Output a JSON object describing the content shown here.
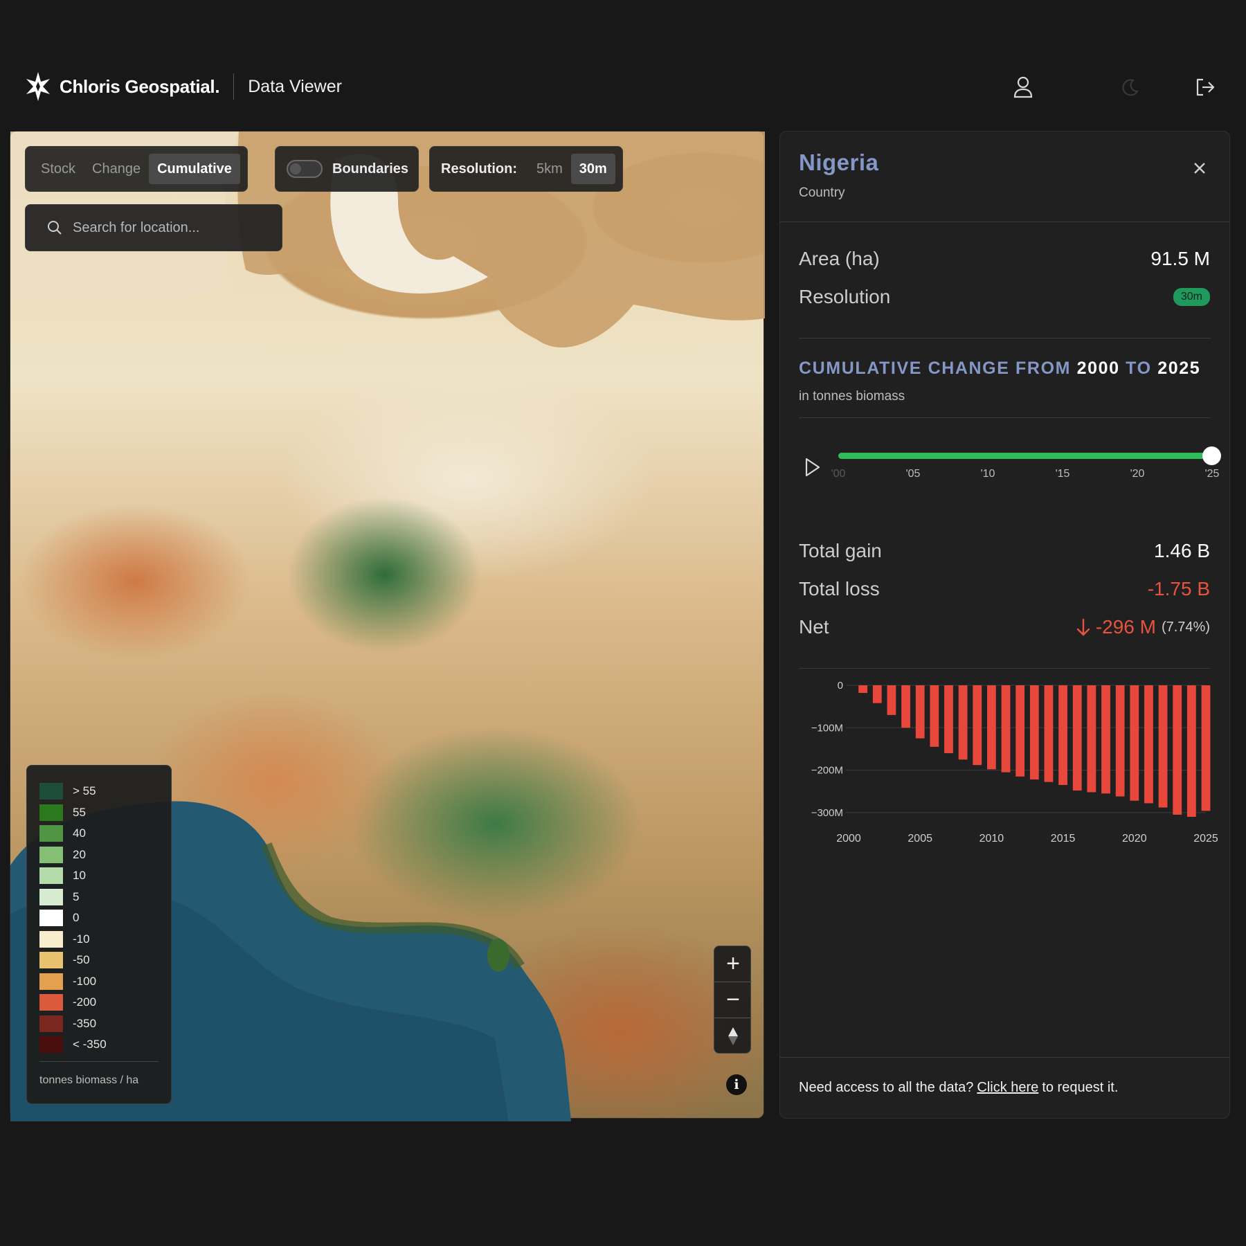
{
  "header": {
    "brand": "Chloris Geospatial.",
    "app_name": "Data Viewer",
    "icons": [
      "user-icon",
      "moon-icon",
      "logout-icon"
    ]
  },
  "map": {
    "mode_tabs": [
      {
        "label": "Stock",
        "active": false
      },
      {
        "label": "Change",
        "active": false
      },
      {
        "label": "Cumulative",
        "active": true
      }
    ],
    "boundaries_label": "Boundaries",
    "boundaries_on": false,
    "resolution_label": "Resolution:",
    "resolution_options": [
      {
        "label": "5km",
        "active": false
      },
      {
        "label": "30m",
        "active": true
      }
    ],
    "search_placeholder": "Search for location...",
    "legend": {
      "items": [
        {
          "label": "> 55",
          "color": "#1f4d3b"
        },
        {
          "label": "55",
          "color": "#2a7a1d"
        },
        {
          "label": "40",
          "color": "#4f9544"
        },
        {
          "label": "20",
          "color": "#84bf73"
        },
        {
          "label": "10",
          "color": "#b4dcaa"
        },
        {
          "label": "5",
          "color": "#d5ecd0"
        },
        {
          "label": "0",
          "color": "#ffffff"
        },
        {
          "label": "-10",
          "color": "#f7eccb"
        },
        {
          "label": "-50",
          "color": "#e9c26f"
        },
        {
          "label": "-100",
          "color": "#e3a04f"
        },
        {
          "label": "-200",
          "color": "#dc5a3c"
        },
        {
          "label": "-350",
          "color": "#7c2620"
        },
        {
          "label": "< -350",
          "color": "#4a0f0c"
        }
      ],
      "unit": "tonnes biomass / ha"
    },
    "zoom": {
      "in": "+",
      "out": "−"
    },
    "info": "i"
  },
  "panel": {
    "title": "Nigeria",
    "subtitle": "Country",
    "area_label": "Area (ha)",
    "area_value": "91.5 M",
    "resolution_label": "Resolution",
    "resolution_value": "30m",
    "cumulative_prefix": "CUMULATIVE CHANGE FROM",
    "from_year": "2000",
    "to_word": "TO",
    "to_year": "2025",
    "unit": "in tonnes biomass",
    "slider": {
      "ticks": [
        "'00",
        "'05",
        "'10",
        "'15",
        "'20",
        "'25"
      ],
      "min": 2000,
      "max": 2025,
      "value": 2025
    },
    "total_gain_label": "Total gain",
    "total_gain_value": "1.46 B",
    "total_loss_label": "Total loss",
    "total_loss_value": "-1.75 B",
    "net_label": "Net",
    "net_value": "-296 M",
    "net_pct": "(7.74%)",
    "footer_prefix": "Need access to all the data?",
    "footer_link": "Click here",
    "footer_suffix": "to request it.",
    "accent": "#8497c6",
    "loss_color": "#e8533f"
  },
  "chart_data": {
    "type": "bar",
    "categories": [
      2001,
      2002,
      2003,
      2004,
      2005,
      2006,
      2007,
      2008,
      2009,
      2010,
      2011,
      2012,
      2013,
      2014,
      2015,
      2016,
      2017,
      2018,
      2019,
      2020,
      2021,
      2022,
      2023,
      2024,
      2025
    ],
    "values": [
      -18,
      -42,
      -70,
      -100,
      -125,
      -145,
      -160,
      -175,
      -188,
      -198,
      -205,
      -215,
      -222,
      -228,
      -235,
      -248,
      -252,
      -255,
      -262,
      -272,
      -278,
      -288,
      -305,
      -310,
      -296
    ],
    "xticks": [
      2000,
      2005,
      2010,
      2015,
      2020,
      2025
    ],
    "yticks": [
      0,
      -100,
      -200,
      -300
    ],
    "ytick_labels": [
      "0",
      "−100M",
      "−200M",
      "−300M"
    ],
    "ylim": [
      -310,
      0
    ],
    "bar_color": "#e8473c",
    "grid": true
  }
}
